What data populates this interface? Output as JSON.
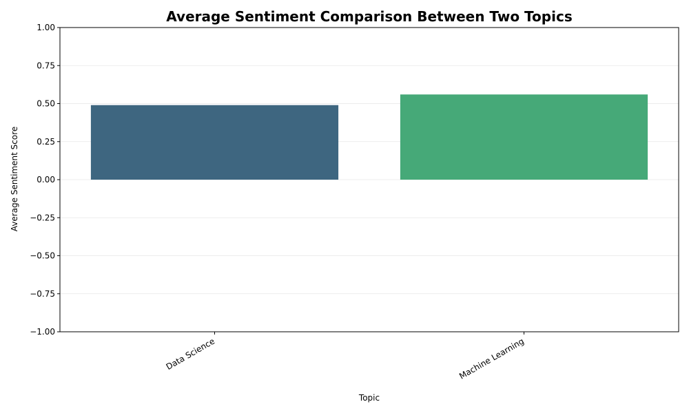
{
  "chart_data": {
    "type": "bar",
    "title": "Average Sentiment Comparison Between Two Topics",
    "xlabel": "Topic",
    "ylabel": "Average Sentiment Score",
    "categories": [
      "Data Science",
      "Machine Learning"
    ],
    "values": [
      0.49,
      0.56
    ],
    "colors": [
      "#3e6680",
      "#46a978"
    ],
    "ylim": [
      -1.0,
      1.0
    ],
    "yticks": [
      "−1.00",
      "−0.75",
      "−0.50",
      "−0.25",
      "0.00",
      "0.25",
      "0.50",
      "0.75",
      "1.00"
    ],
    "ytick_values": [
      -1.0,
      -0.75,
      -0.5,
      -0.25,
      0.0,
      0.25,
      0.5,
      0.75,
      1.0
    ],
    "grid": "y-axis only",
    "legend": "none"
  }
}
